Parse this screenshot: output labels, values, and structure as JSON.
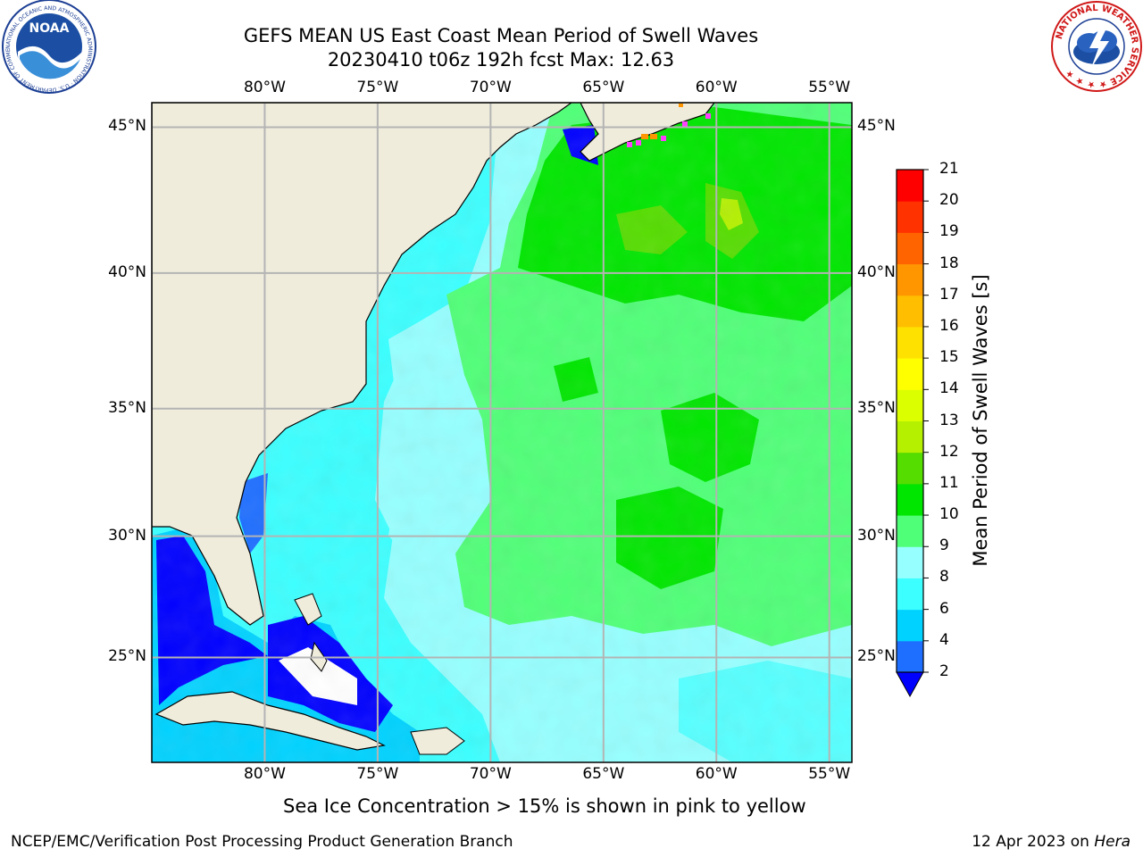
{
  "title": {
    "line1": "GEFS MEAN US East Coast Mean Period of Swell Waves",
    "line2": "20230410 t06z 192h fcst   Max: 12.63"
  },
  "map": {
    "lon_ticks": [
      "80°W",
      "75°W",
      "70°W",
      "65°W",
      "60°W",
      "55°W"
    ],
    "lat_ticks": [
      "45°N",
      "40°N",
      "35°N",
      "30°N",
      "25°N"
    ],
    "extent": {
      "lon": [
        -85,
        -54
      ],
      "lat": [
        20.5,
        45.8
      ]
    },
    "land_color": "#efecdc",
    "gridline_color": "#b4b4b4"
  },
  "colorbar": {
    "label": "Mean Period of Swell Waves [s]",
    "ticks": [
      "2",
      "4",
      "6",
      "8",
      "9",
      "10",
      "11",
      "12",
      "13",
      "14",
      "15",
      "16",
      "17",
      "18",
      "19",
      "20",
      "21"
    ],
    "colors": [
      "#1e6eff",
      "#00d2ff",
      "#3cffff",
      "#96ffff",
      "#50ff78",
      "#00e600",
      "#55dd00",
      "#b4f000",
      "#dcff00",
      "#ffff00",
      "#ffe100",
      "#ffbe00",
      "#ff9600",
      "#ff6400",
      "#ff3200",
      "#ff0000"
    ],
    "under_color": "#0000ff"
  },
  "caption": "Sea Ice Concentration > 15% is shown in pink to yellow",
  "footer": {
    "left": "NCEP/EMC/Verification Post Processing Product Generation Branch",
    "right_prefix": "12 Apr 2023 on ",
    "right_host": "Hera"
  },
  "logos": {
    "noaa_text": "NOAA",
    "noaa_ring": "NATIONAL OCEANIC AND ATMOSPHERIC ADMINISTRATION · U.S. DEPARTMENT OF COMMERCE ·",
    "nws_ring": "NATIONAL WEATHER SERVICE ★ ★ ★ ★"
  }
}
